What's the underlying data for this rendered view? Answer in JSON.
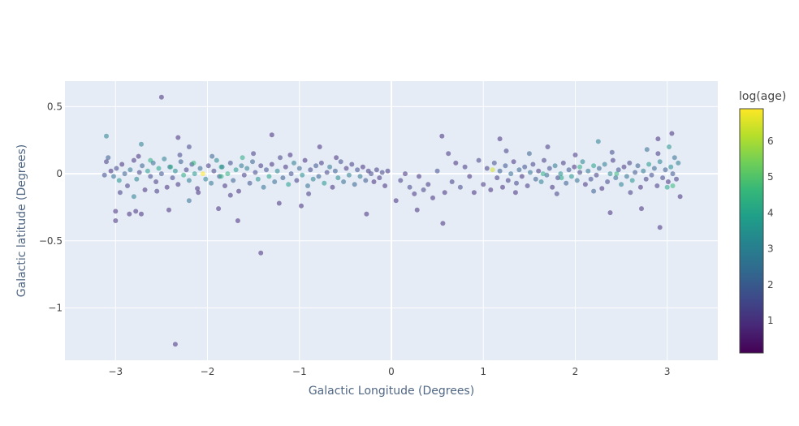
{
  "chart_data": {
    "type": "scatter",
    "title": "",
    "xlabel": "Galactic Longitude (Degrees)",
    "ylabel": "Galactic latitude (Degrees)",
    "xlim": [
      -3.55,
      3.55
    ],
    "ylim": [
      -1.39,
      0.69
    ],
    "x_ticks": [
      -3,
      -2,
      -1,
      0,
      1,
      2,
      3
    ],
    "x_tick_labels": [
      "−3",
      "−2",
      "−1",
      "0",
      "1",
      "2",
      "3"
    ],
    "y_ticks": [
      -1,
      -0.5,
      0,
      0.5
    ],
    "y_tick_labels": [
      "−1",
      "−0.5",
      "0",
      "0.5"
    ],
    "grid": true,
    "marker_opacity": 0.55,
    "colorbar": {
      "title": "log(age)",
      "range": [
        0.1,
        6.9
      ],
      "ticks": [
        1,
        2,
        3,
        4,
        5,
        6
      ],
      "colorscale": [
        "#440154",
        "#482878",
        "#3e4989",
        "#31688e",
        "#26828e",
        "#1f9e89",
        "#35b779",
        "#6ece58",
        "#b5de2b",
        "#fde725"
      ]
    },
    "points": [
      [
        -3.1,
        0.28,
        3.0
      ],
      [
        -2.5,
        0.57,
        1.0
      ],
      [
        -2.35,
        -1.27,
        1.0
      ],
      [
        -1.42,
        -0.59,
        1.0
      ],
      [
        -3.0,
        -0.35,
        1.0
      ],
      [
        -3.0,
        -0.28,
        1.0
      ],
      [
        -2.85,
        -0.3,
        1.0
      ],
      [
        -2.78,
        -0.28,
        1.0
      ],
      [
        -2.72,
        -0.3,
        1.0
      ],
      [
        -2.42,
        -0.27,
        1.0
      ],
      [
        -1.88,
        -0.26,
        1.0
      ],
      [
        -1.67,
        -0.35,
        1.0
      ],
      [
        -0.98,
        -0.24,
        1.0
      ],
      [
        -0.27,
        -0.3,
        1.0
      ],
      [
        0.28,
        -0.27,
        1.0
      ],
      [
        0.56,
        -0.37,
        1.0
      ],
      [
        2.38,
        -0.29,
        1.0
      ],
      [
        2.72,
        -0.26,
        1.0
      ],
      [
        2.92,
        -0.4,
        1.0
      ],
      [
        -2.05,
        0.0,
        6.9
      ],
      [
        1.1,
        0.03,
        6.5
      ],
      [
        -1.3,
        0.29,
        1.0
      ],
      [
        -2.32,
        0.27,
        1.0
      ],
      [
        -2.2,
        0.2,
        1.5
      ],
      [
        0.55,
        0.28,
        1.0
      ],
      [
        1.18,
        0.26,
        1.0
      ],
      [
        2.9,
        0.26,
        1.0
      ],
      [
        3.05,
        0.3,
        1.0
      ],
      [
        -2.72,
        0.22,
        3.0
      ],
      [
        2.25,
        0.24,
        3.0
      ],
      [
        -1.22,
        -0.22,
        1.0
      ],
      [
        -0.78,
        0.2,
        1.0
      ],
      [
        -2.2,
        -0.2,
        2.5
      ],
      [
        0.9,
        -0.14,
        1.0
      ],
      [
        -3.1,
        0.09,
        1.2
      ],
      [
        -3.08,
        0.12,
        2.0
      ],
      [
        -3.05,
        0.02,
        1.0
      ],
      [
        -3.02,
        -0.02,
        2.5
      ],
      [
        -2.99,
        0.04,
        1.5
      ],
      [
        -2.96,
        -0.05,
        3.5
      ],
      [
        -2.93,
        0.07,
        1.0
      ],
      [
        -2.9,
        0.0,
        2.0
      ],
      [
        -2.87,
        -0.09,
        1.3
      ],
      [
        -2.84,
        0.03,
        2.8
      ],
      [
        -2.8,
        0.1,
        1.1
      ],
      [
        -2.77,
        -0.04,
        3.2
      ],
      [
        -2.74,
        0.01,
        1.4
      ],
      [
        -2.71,
        0.06,
        2.2
      ],
      [
        -2.68,
        -0.12,
        1.0
      ],
      [
        -2.65,
        0.02,
        3.8
      ],
      [
        -2.62,
        -0.02,
        1.6
      ],
      [
        -2.59,
        0.08,
        2.4
      ],
      [
        -2.56,
        -0.06,
        1.2
      ],
      [
        -2.53,
        0.04,
        4.0
      ],
      [
        -2.5,
        0.0,
        1.8
      ],
      [
        -2.47,
        0.11,
        3.0
      ],
      [
        -2.44,
        -0.1,
        1.0
      ],
      [
        -2.41,
        0.05,
        2.6
      ],
      [
        -2.38,
        -0.03,
        1.5
      ],
      [
        -2.35,
        0.02,
        3.4
      ],
      [
        -2.32,
        -0.08,
        1.1
      ],
      [
        -2.29,
        0.09,
        2.0
      ],
      [
        -2.26,
        -0.01,
        4.2
      ],
      [
        -2.23,
        0.03,
        1.3
      ],
      [
        -2.2,
        -0.05,
        2.9
      ],
      [
        -2.17,
        0.07,
        1.7
      ],
      [
        -2.14,
        0.0,
        3.6
      ],
      [
        -2.11,
        -0.11,
        1.0
      ],
      [
        -2.08,
        0.04,
        2.3
      ],
      [
        -2.02,
        -0.04,
        3.1
      ],
      [
        -1.99,
        0.06,
        1.2
      ],
      [
        -1.96,
        -0.07,
        2.7
      ],
      [
        -1.93,
        0.02,
        1.4
      ],
      [
        -1.9,
        0.1,
        3.3
      ],
      [
        -1.87,
        -0.02,
        1.9
      ],
      [
        -1.84,
        0.05,
        2.5
      ],
      [
        -1.81,
        -0.09,
        1.1
      ],
      [
        -1.78,
        0.0,
        4.4
      ],
      [
        -1.75,
        0.08,
        1.6
      ],
      [
        -1.72,
        -0.05,
        2.1
      ],
      [
        -1.69,
        0.03,
        3.7
      ],
      [
        -1.66,
        -0.13,
        1.0
      ],
      [
        -1.63,
        0.06,
        2.8
      ],
      [
        -1.6,
        -0.01,
        1.3
      ],
      [
        -1.57,
        0.04,
        3.0
      ],
      [
        -1.54,
        -0.07,
        1.8
      ],
      [
        -1.51,
        0.09,
        2.2
      ],
      [
        -1.48,
        0.01,
        1.5
      ],
      [
        -1.45,
        -0.04,
        3.5
      ],
      [
        -1.42,
        0.06,
        1.2
      ],
      [
        -1.39,
        -0.1,
        2.6
      ],
      [
        -1.36,
        0.03,
        1.7
      ],
      [
        -1.33,
        -0.02,
        4.0
      ],
      [
        -1.3,
        0.07,
        1.0
      ],
      [
        -1.27,
        -0.06,
        2.4
      ],
      [
        -1.24,
        0.02,
        3.2
      ],
      [
        -1.21,
        0.12,
        1.4
      ],
      [
        -1.18,
        -0.03,
        2.0
      ],
      [
        -1.15,
        0.05,
        1.1
      ],
      [
        -1.12,
        -0.08,
        3.8
      ],
      [
        -1.09,
        0.0,
        1.6
      ],
      [
        -1.06,
        0.08,
        2.9
      ],
      [
        -1.03,
        -0.05,
        1.3
      ],
      [
        -1.0,
        0.04,
        2.2
      ],
      [
        -0.97,
        -0.01,
        3.4
      ],
      [
        -0.94,
        0.1,
        1.0
      ],
      [
        -0.91,
        -0.09,
        2.5
      ],
      [
        -0.88,
        0.03,
        1.5
      ],
      [
        -0.85,
        -0.04,
        3.1
      ],
      [
        -0.82,
        0.06,
        1.8
      ],
      [
        -0.79,
        -0.02,
        2.1
      ],
      [
        -0.76,
        0.08,
        1.2
      ],
      [
        -0.73,
        -0.07,
        3.6
      ],
      [
        -0.7,
        0.01,
        1.4
      ],
      [
        -0.67,
        0.05,
        2.7
      ],
      [
        -0.64,
        -0.1,
        1.0
      ],
      [
        -0.61,
        0.02,
        2.0
      ],
      [
        -0.58,
        -0.03,
        3.3
      ],
      [
        -0.55,
        0.09,
        1.6
      ],
      [
        -0.52,
        -0.06,
        2.4
      ],
      [
        -0.49,
        0.04,
        1.1
      ],
      [
        -0.46,
        -0.01,
        3.0
      ],
      [
        -0.43,
        0.07,
        1.3
      ],
      [
        -0.4,
        -0.08,
        2.2
      ],
      [
        -0.37,
        0.03,
        1.7
      ],
      [
        -0.34,
        -0.02,
        2.8
      ],
      [
        -0.31,
        0.05,
        1.0
      ],
      [
        -0.28,
        -0.05,
        1.9
      ],
      [
        -0.25,
        0.02,
        1.2
      ],
      [
        -0.22,
        0.0,
        1.5
      ],
      [
        -0.19,
        -0.06,
        1.0
      ],
      [
        -0.16,
        0.03,
        1.3
      ],
      [
        -0.13,
        -0.03,
        1.1
      ],
      [
        -0.1,
        0.01,
        1.4
      ],
      [
        -0.07,
        -0.09,
        1.0
      ],
      [
        -0.04,
        0.02,
        1.2
      ],
      [
        0.05,
        -0.2,
        1.0
      ],
      [
        0.1,
        -0.05,
        1.3
      ],
      [
        0.15,
        0.0,
        1.0
      ],
      [
        0.2,
        -0.1,
        1.5
      ],
      [
        0.25,
        -0.15,
        1.1
      ],
      [
        0.3,
        -0.02,
        1.0
      ],
      [
        0.35,
        -0.12,
        1.4
      ],
      [
        0.4,
        -0.08,
        1.2
      ],
      [
        0.45,
        -0.18,
        1.0
      ],
      [
        0.5,
        0.02,
        1.6
      ],
      [
        0.58,
        -0.14,
        1.0
      ],
      [
        0.62,
        0.15,
        1.1
      ],
      [
        0.66,
        -0.06,
        1.3
      ],
      [
        0.7,
        0.08,
        1.0
      ],
      [
        0.75,
        -0.1,
        1.5
      ],
      [
        0.8,
        0.05,
        1.2
      ],
      [
        0.85,
        -0.02,
        1.0
      ],
      [
        0.95,
        0.1,
        1.4
      ],
      [
        1.0,
        -0.08,
        1.1
      ],
      [
        1.04,
        0.04,
        1.3
      ],
      [
        1.08,
        -0.12,
        1.0
      ],
      [
        1.12,
        0.08,
        1.6
      ],
      [
        1.15,
        -0.03,
        1.2
      ],
      [
        1.18,
        0.02,
        2.0
      ],
      [
        1.21,
        -0.1,
        1.0
      ],
      [
        1.24,
        0.06,
        1.8
      ],
      [
        1.27,
        -0.05,
        1.3
      ],
      [
        1.3,
        0.0,
        2.4
      ],
      [
        1.33,
        0.09,
        1.1
      ],
      [
        1.36,
        -0.07,
        1.5
      ],
      [
        1.39,
        0.03,
        2.2
      ],
      [
        1.42,
        -0.02,
        1.0
      ],
      [
        1.45,
        0.05,
        1.7
      ],
      [
        1.48,
        -0.09,
        1.2
      ],
      [
        1.51,
        0.01,
        2.6
      ],
      [
        1.54,
        0.07,
        1.4
      ],
      [
        1.57,
        -0.04,
        2.0
      ],
      [
        1.6,
        0.02,
        1.1
      ],
      [
        1.63,
        -0.06,
        3.0
      ],
      [
        1.66,
        0.1,
        1.3
      ],
      [
        1.69,
        -0.01,
        2.3
      ],
      [
        1.72,
        0.04,
        1.6
      ],
      [
        1.75,
        -0.1,
        1.0
      ],
      [
        1.78,
        0.06,
        2.8
      ],
      [
        1.81,
        -0.03,
        1.5
      ],
      [
        1.84,
        0.0,
        3.4
      ],
      [
        1.87,
        0.08,
        1.2
      ],
      [
        1.9,
        -0.07,
        2.1
      ],
      [
        1.93,
        0.03,
        1.8
      ],
      [
        1.96,
        -0.02,
        3.6
      ],
      [
        1.99,
        0.05,
        1.0
      ],
      [
        2.02,
        -0.05,
        2.5
      ],
      [
        2.05,
        0.01,
        1.4
      ],
      [
        2.08,
        0.09,
        3.2
      ],
      [
        2.11,
        -0.08,
        1.1
      ],
      [
        2.14,
        0.02,
        2.7
      ],
      [
        2.17,
        -0.04,
        1.6
      ],
      [
        2.2,
        0.06,
        3.9
      ],
      [
        2.23,
        -0.01,
        1.3
      ],
      [
        2.26,
        0.04,
        2.2
      ],
      [
        2.29,
        -0.11,
        1.0
      ],
      [
        2.32,
        0.07,
        2.9
      ],
      [
        2.35,
        -0.06,
        1.5
      ],
      [
        2.38,
        0.0,
        3.3
      ],
      [
        2.41,
        0.1,
        1.2
      ],
      [
        2.44,
        -0.03,
        2.4
      ],
      [
        2.47,
        0.03,
        1.7
      ],
      [
        2.5,
        -0.08,
        3.0
      ],
      [
        2.53,
        0.05,
        1.1
      ],
      [
        2.56,
        -0.02,
        2.6
      ],
      [
        2.59,
        0.08,
        1.4
      ],
      [
        2.62,
        -0.05,
        3.5
      ],
      [
        2.65,
        0.01,
        1.8
      ],
      [
        2.68,
        0.06,
        2.1
      ],
      [
        2.71,
        -0.1,
        1.0
      ],
      [
        2.74,
        0.02,
        2.8
      ],
      [
        2.77,
        -0.04,
        1.3
      ],
      [
        2.8,
        0.07,
        3.7
      ],
      [
        2.83,
        -0.01,
        1.6
      ],
      [
        2.86,
        0.04,
        2.3
      ],
      [
        2.89,
        -0.09,
        1.2
      ],
      [
        2.92,
        0.09,
        3.1
      ],
      [
        2.95,
        -0.03,
        1.5
      ],
      [
        2.98,
        0.03,
        2.0
      ],
      [
        3.01,
        -0.06,
        1.0
      ],
      [
        3.04,
        0.05,
        3.4
      ],
      [
        3.06,
        0.0,
        1.8
      ],
      [
        3.08,
        0.12,
        2.5
      ],
      [
        3.1,
        -0.04,
        1.3
      ],
      [
        3.12,
        0.08,
        2.9
      ],
      [
        3.14,
        -0.17,
        1.0
      ],
      [
        3.0,
        -0.1,
        4.0
      ],
      [
        2.9,
        0.15,
        1.2
      ],
      [
        2.78,
        0.18,
        2.4
      ],
      [
        2.6,
        -0.14,
        1.3
      ],
      [
        2.4,
        0.16,
        1.6
      ],
      [
        2.2,
        -0.13,
        2.0
      ],
      [
        2.0,
        0.14,
        1.1
      ],
      [
        1.8,
        -0.15,
        1.4
      ],
      [
        1.7,
        0.2,
        1.2
      ],
      [
        1.5,
        0.15,
        2.2
      ],
      [
        1.35,
        -0.14,
        1.0
      ],
      [
        1.25,
        0.17,
        1.3
      ],
      [
        -0.6,
        0.12,
        1.0
      ],
      [
        -0.9,
        -0.15,
        1.2
      ],
      [
        -1.1,
        0.14,
        1.0
      ],
      [
        -1.5,
        0.15,
        1.3
      ],
      [
        -1.75,
        -0.16,
        1.1
      ],
      [
        -1.95,
        0.13,
        2.2
      ],
      [
        -2.1,
        -0.14,
        1.0
      ],
      [
        -2.3,
        0.14,
        1.5
      ],
      [
        -2.55,
        -0.13,
        1.2
      ],
      [
        -2.75,
        0.13,
        1.0
      ],
      [
        -2.95,
        -0.14,
        1.3
      ],
      [
        -3.12,
        -0.01,
        1.6
      ],
      [
        -2.62,
        0.1,
        4.3
      ],
      [
        -2.15,
        0.08,
        4.6
      ],
      [
        -1.85,
        -0.02,
        4.4
      ],
      [
        -1.62,
        0.12,
        4.2
      ],
      [
        1.85,
        -0.03,
        4.1
      ],
      [
        2.05,
        0.05,
        4.4
      ],
      [
        3.02,
        0.2,
        3.6
      ],
      [
        3.06,
        -0.09,
        4.6
      ],
      [
        -2.8,
        -0.17,
        3.0
      ],
      [
        -1.85,
        0.05,
        4.0
      ],
      [
        -2.4,
        0.05,
        4.2
      ],
      [
        1.65,
        0.0,
        4.2
      ],
      [
        2.45,
        0.0,
        4.5
      ]
    ]
  }
}
